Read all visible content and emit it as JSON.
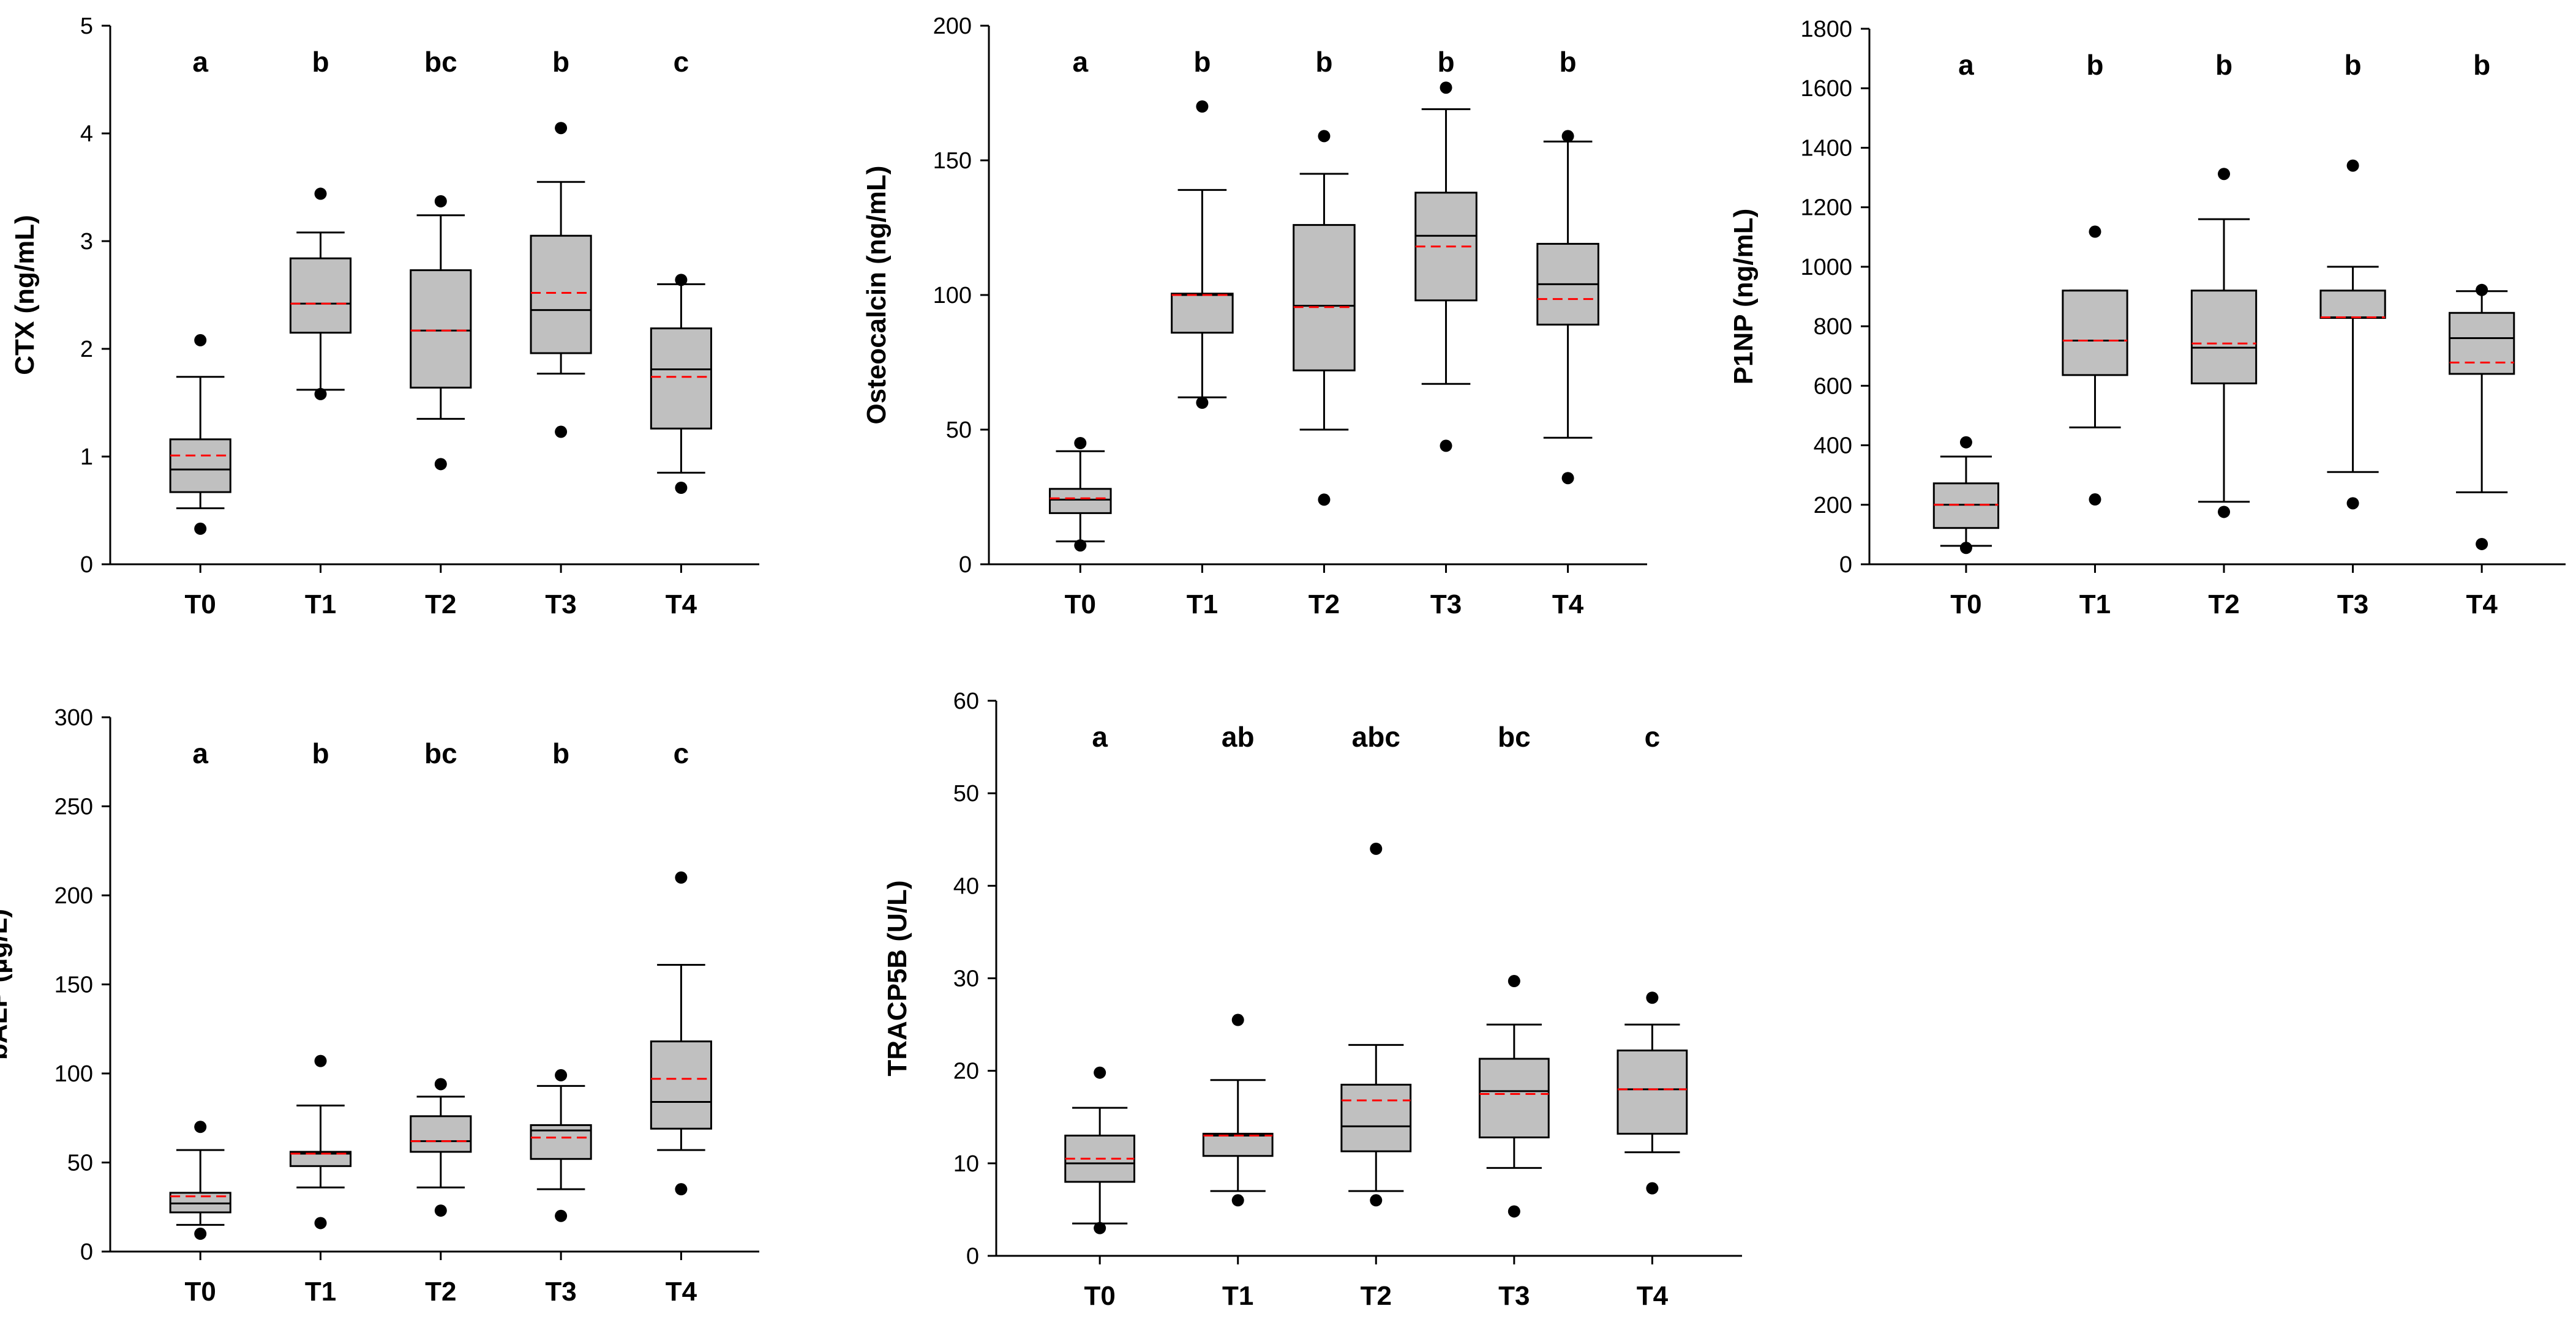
{
  "colors": {
    "box_fill": "#c0c0c0",
    "median_line": "#000000",
    "mean_line": "#ff0000",
    "outlier": "#000000",
    "axis": "#000000"
  },
  "chart_data": [
    {
      "type": "box",
      "ylabel": "CTX (ng/mL)",
      "ylim": [
        0,
        5
      ],
      "yticks": [
        0,
        1,
        2,
        3,
        4,
        5
      ],
      "categories": [
        "T0",
        "T1",
        "T2",
        "T3",
        "T4"
      ],
      "significance": [
        "a",
        "b",
        "bc",
        "b",
        "c"
      ],
      "boxes": [
        {
          "whisker_low": 0.52,
          "q1": 0.67,
          "median": 0.88,
          "mean": 1.01,
          "q3": 1.16,
          "whisker_high": 1.74,
          "outliers": [
            0.33,
            2.08
          ]
        },
        {
          "whisker_low": 1.62,
          "q1": 2.15,
          "median": 2.42,
          "mean": 2.42,
          "q3": 2.84,
          "whisker_high": 3.08,
          "outliers": [
            1.58,
            3.44
          ]
        },
        {
          "whisker_low": 1.35,
          "q1": 1.64,
          "median": 2.17,
          "mean": 2.17,
          "q3": 2.73,
          "whisker_high": 3.24,
          "outliers": [
            0.93,
            3.37
          ]
        },
        {
          "whisker_low": 1.77,
          "q1": 1.96,
          "median": 2.36,
          "mean": 2.52,
          "q3": 3.05,
          "whisker_high": 3.55,
          "outliers": [
            1.23,
            4.05
          ]
        },
        {
          "whisker_low": 0.85,
          "q1": 1.26,
          "median": 1.81,
          "mean": 1.74,
          "q3": 2.19,
          "whisker_high": 2.6,
          "outliers": [
            0.71,
            2.64
          ]
        }
      ]
    },
    {
      "type": "box",
      "ylabel": "Osteocalcin (ng/mL)",
      "ylim": [
        0,
        200
      ],
      "yticks": [
        0,
        50,
        100,
        150,
        200
      ],
      "categories": [
        "T0",
        "T1",
        "T2",
        "T3",
        "T4"
      ],
      "significance": [
        "a",
        "b",
        "b",
        "b",
        "b"
      ],
      "boxes": [
        {
          "whisker_low": 8.5,
          "q1": 19,
          "median": 24,
          "mean": 24.5,
          "q3": 28,
          "whisker_high": 42,
          "outliers": [
            7,
            45
          ]
        },
        {
          "whisker_low": 62,
          "q1": 86,
          "median": 100,
          "mean": 100,
          "q3": 100.5,
          "whisker_high": 139,
          "outliers": [
            60,
            170
          ]
        },
        {
          "whisker_low": 50,
          "q1": 72,
          "median": 96,
          "mean": 95.5,
          "q3": 126,
          "whisker_high": 145,
          "outliers": [
            24,
            159
          ]
        },
        {
          "whisker_low": 67,
          "q1": 98,
          "median": 122,
          "mean": 118,
          "q3": 138,
          "whisker_high": 169,
          "outliers": [
            44,
            177
          ]
        },
        {
          "whisker_low": 47,
          "q1": 89,
          "median": 104,
          "mean": 98.5,
          "q3": 119,
          "whisker_high": 157,
          "outliers": [
            32,
            159
          ]
        }
      ]
    },
    {
      "type": "box",
      "ylabel": "P1NP (ng/mL)",
      "ylim": [
        0,
        1800
      ],
      "yticks": [
        0,
        200,
        400,
        600,
        800,
        1000,
        1200,
        1400,
        1600,
        1800
      ],
      "categories": [
        "T0",
        "T1",
        "T2",
        "T3",
        "T4"
      ],
      "significance": [
        "a",
        "b",
        "b",
        "b",
        "b"
      ],
      "boxes": [
        {
          "whisker_low": 62,
          "q1": 122,
          "median": 200,
          "mean": 200,
          "q3": 272,
          "whisker_high": 362,
          "outliers": [
            55,
            410
          ]
        },
        {
          "whisker_low": 460,
          "q1": 636,
          "median": 752,
          "mean": 752,
          "q3": 920,
          "whisker_high": 920,
          "outliers": [
            218,
            1118
          ]
        },
        {
          "whisker_low": 210,
          "q1": 608,
          "median": 728,
          "mean": 742,
          "q3": 920,
          "whisker_high": 1160,
          "outliers": [
            176,
            1312
          ]
        },
        {
          "whisker_low": 310,
          "q1": 828,
          "median": 830,
          "mean": 830,
          "q3": 920,
          "whisker_high": 1000,
          "outliers": [
            205,
            1340
          ]
        },
        {
          "whisker_low": 242,
          "q1": 640,
          "median": 760,
          "mean": 678,
          "q3": 845,
          "whisker_high": 918,
          "outliers": [
            68,
            922
          ]
        }
      ]
    },
    {
      "type": "box",
      "ylabel": "bALP (µg/L)",
      "ylim": [
        0,
        300
      ],
      "yticks": [
        0,
        50,
        100,
        150,
        200,
        250,
        300
      ],
      "categories": [
        "T0",
        "T1",
        "T2",
        "T3",
        "T4"
      ],
      "significance": [
        "a",
        "b",
        "bc",
        "b",
        "c"
      ],
      "boxes": [
        {
          "whisker_low": 15,
          "q1": 22,
          "median": 27,
          "mean": 31,
          "q3": 33,
          "whisker_high": 57,
          "outliers": [
            10,
            70
          ]
        },
        {
          "whisker_low": 36,
          "q1": 48,
          "median": 55,
          "mean": 55,
          "q3": 56,
          "whisker_high": 82,
          "outliers": [
            16,
            107
          ]
        },
        {
          "whisker_low": 36,
          "q1": 56,
          "median": 62,
          "mean": 62,
          "q3": 76,
          "whisker_high": 87,
          "outliers": [
            23,
            94
          ]
        },
        {
          "whisker_low": 35,
          "q1": 52,
          "median": 68,
          "mean": 64,
          "q3": 71,
          "whisker_high": 93,
          "outliers": [
            20,
            99
          ]
        },
        {
          "whisker_low": 57,
          "q1": 69,
          "median": 84,
          "mean": 97,
          "q3": 118,
          "whisker_high": 161,
          "outliers": [
            35,
            210
          ]
        }
      ]
    },
    {
      "type": "box",
      "ylabel": "TRACP5B (U/L)",
      "ylim": [
        0,
        60
      ],
      "yticks": [
        0,
        10,
        20,
        30,
        40,
        50,
        60
      ],
      "categories": [
        "T0",
        "T1",
        "T2",
        "T3",
        "T4"
      ],
      "significance": [
        "a",
        "ab",
        "abc",
        "bc",
        "c"
      ],
      "boxes": [
        {
          "whisker_low": 3.5,
          "q1": 8,
          "median": 10,
          "mean": 10.5,
          "q3": 13,
          "whisker_high": 16,
          "outliers": [
            3,
            19.8
          ]
        },
        {
          "whisker_low": 7,
          "q1": 10.8,
          "median": 13,
          "mean": 13,
          "q3": 13.2,
          "whisker_high": 19,
          "outliers": [
            6,
            25.5
          ]
        },
        {
          "whisker_low": 7,
          "q1": 11.3,
          "median": 14,
          "mean": 16.8,
          "q3": 18.5,
          "whisker_high": 22.8,
          "outliers": [
            6,
            44
          ]
        },
        {
          "whisker_low": 9.5,
          "q1": 12.8,
          "median": 17.8,
          "mean": 17.5,
          "q3": 21.3,
          "whisker_high": 25,
          "outliers": [
            4.8,
            29.7
          ]
        },
        {
          "whisker_low": 11.2,
          "q1": 13.2,
          "median": 18,
          "mean": 18,
          "q3": 22.2,
          "whisker_high": 25,
          "outliers": [
            7.3,
            27.9
          ]
        }
      ]
    }
  ]
}
